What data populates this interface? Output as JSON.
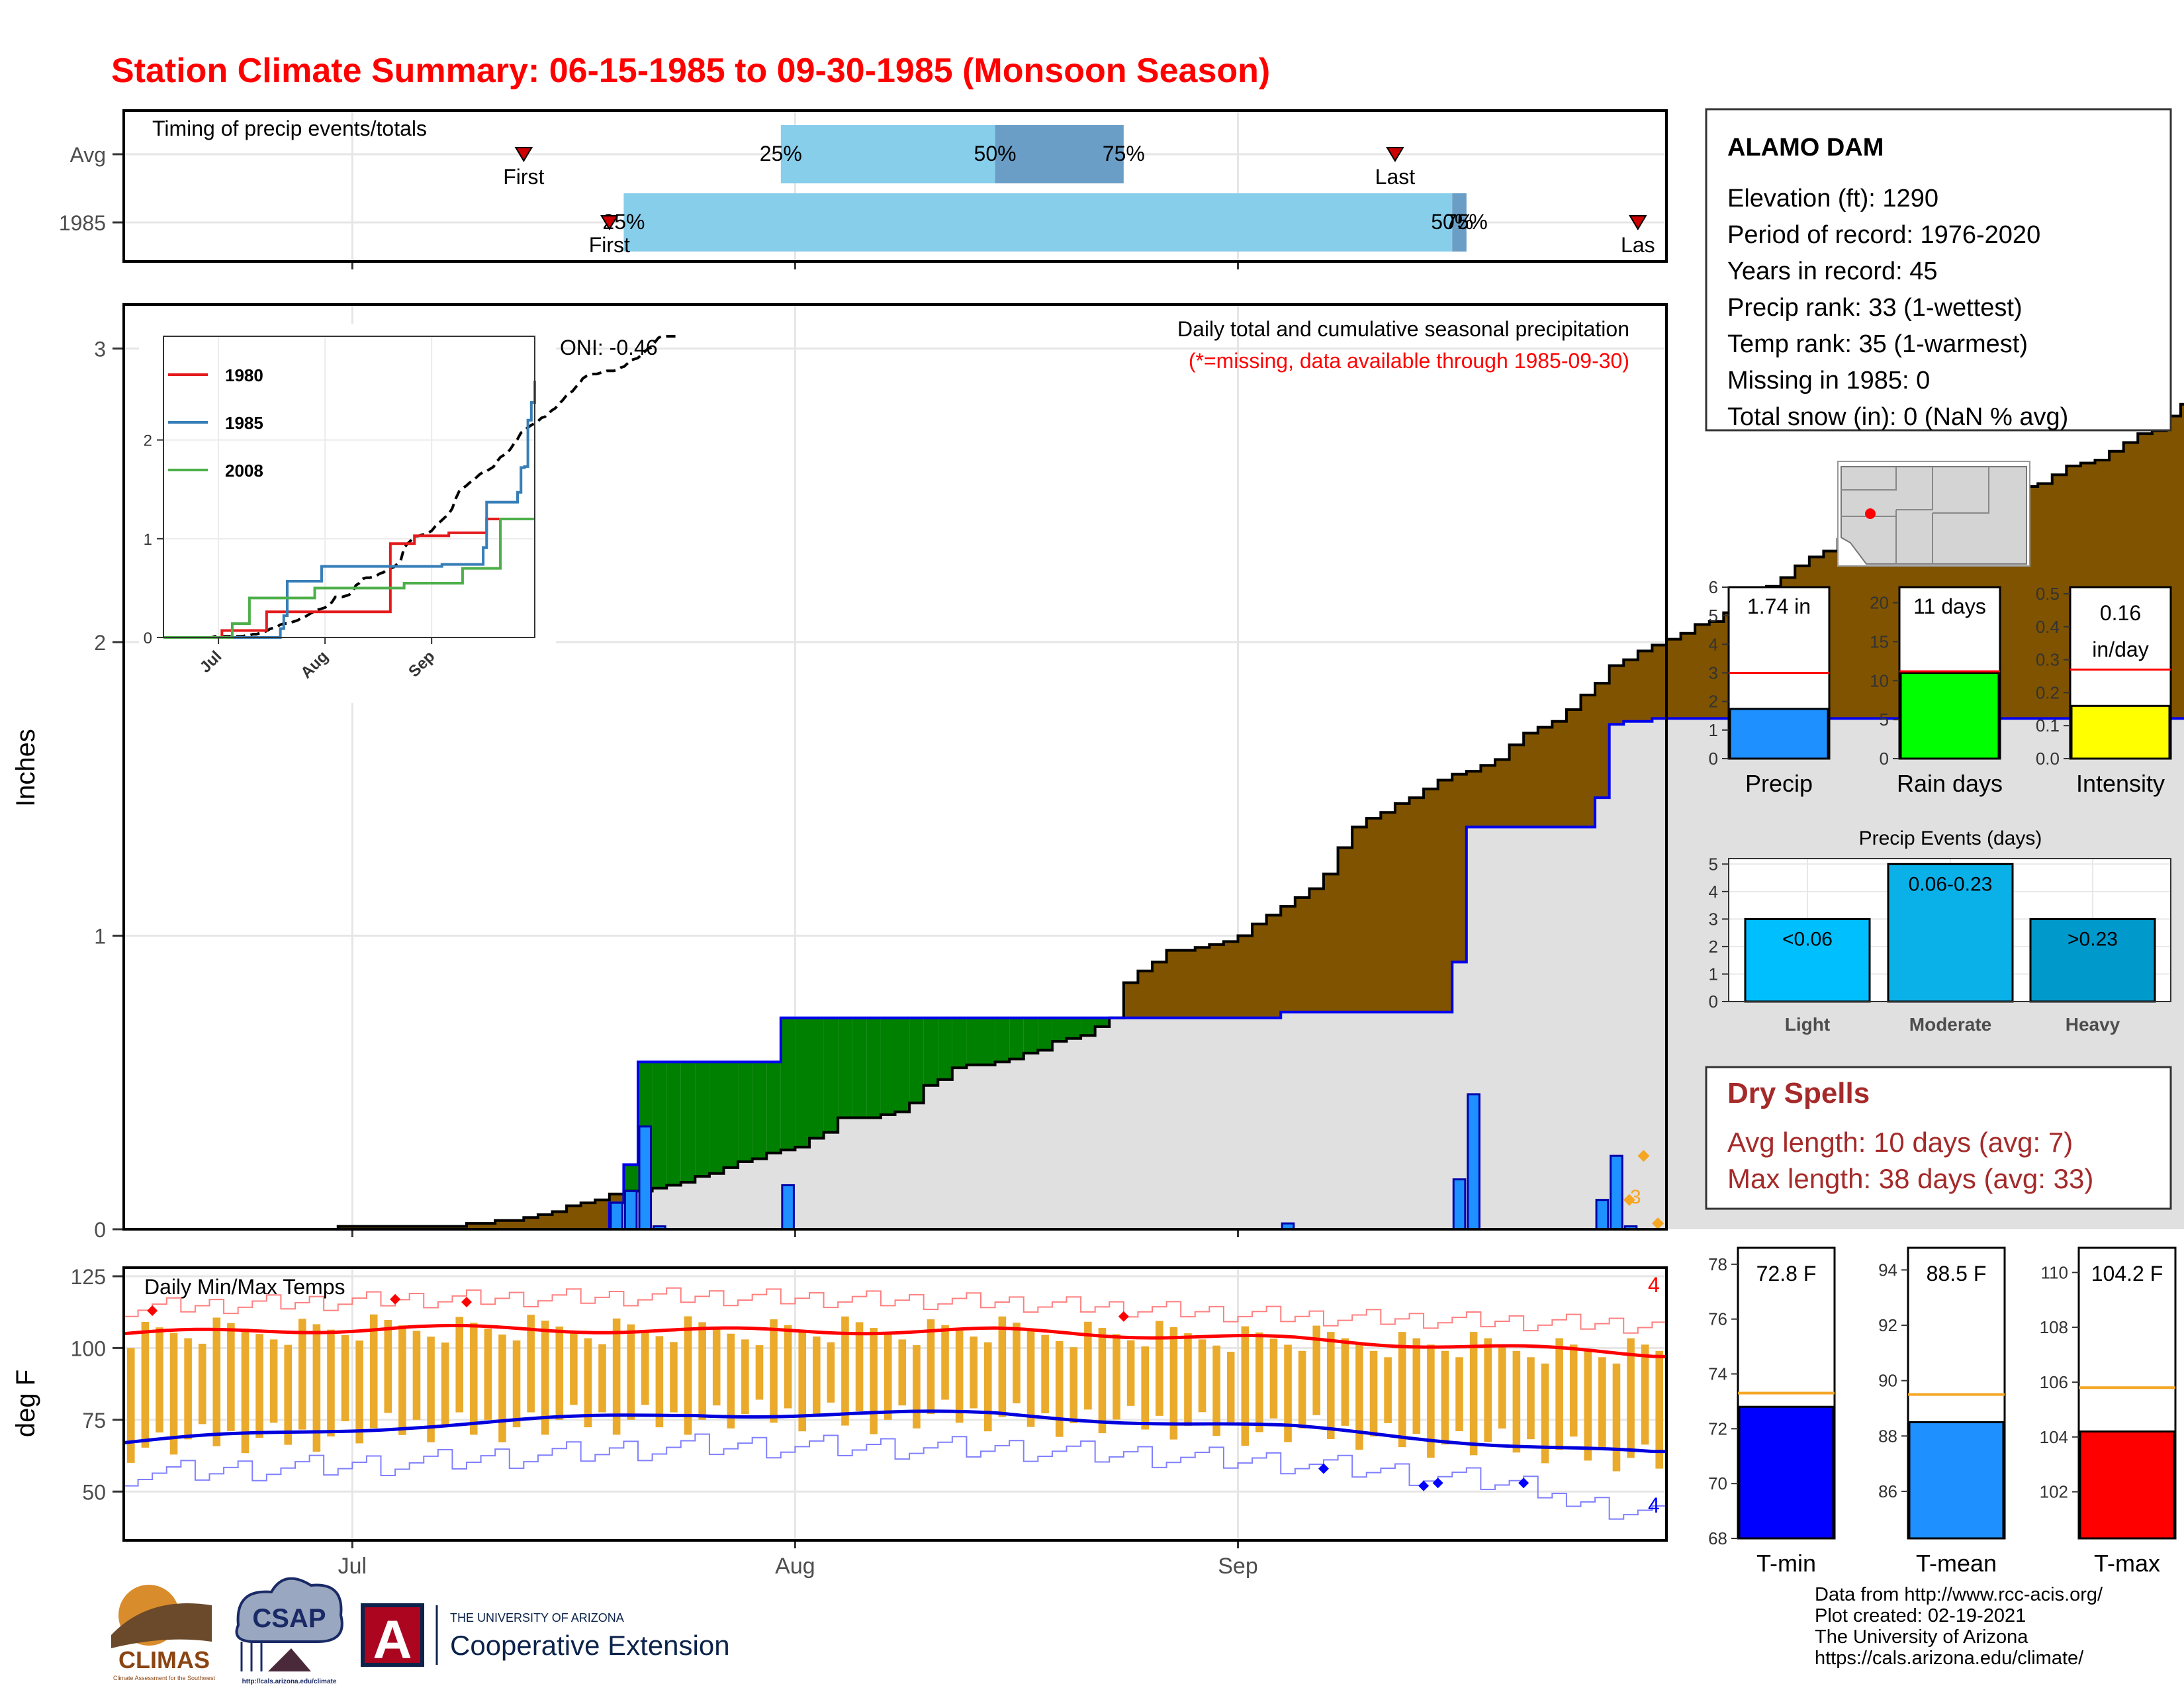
{
  "title": "Station Climate Summary: 06-15-1985 to 09-30-1985 (Monsoon Season)",
  "colors": {
    "title_red": "#ff0000",
    "precip_light": "#87ceeb",
    "precip_dark": "#6a9ec6",
    "cumulative_avg_fill": "#7f5300",
    "cumulative_above_fill": "#008000",
    "cumulative_year_fill": "#e0e0e0",
    "daily_bar": "#1e90ff",
    "temp_bar": "#eaaa2b",
    "tmax_line": "#ff0000",
    "tmin_line": "#0000dd",
    "dry_spell_red": "#a52a2a"
  },
  "timing_panel": {
    "label": "Timing of precip events/totals",
    "rows": [
      "Avg",
      "1985"
    ],
    "avg": {
      "first_label": "First",
      "last_label": "Last",
      "first": "1985-07-13",
      "p25": "1985-07-31",
      "p50": "1985-08-15",
      "p75": "1985-08-24",
      "last": "1985-09-12",
      "p25_label": "25%",
      "p50_label": "50%",
      "p75_label": "75%"
    },
    "y1985": {
      "first_label": "First",
      "last_label": "Las",
      "first": "1985-07-19",
      "p25": "1985-07-20",
      "p50": "1985-09-16",
      "p75": "1985-09-17",
      "last": "1985-09-29",
      "p25_label": "25%",
      "p50_label": "50%",
      "p75_label": "75%"
    }
  },
  "main_panel": {
    "ylabel": "Inches",
    "yticks": [
      "0",
      "1",
      "2",
      "3"
    ],
    "title": "Daily total and cumulative seasonal precipitation",
    "subtitle": "(*=missing, data available through 1985-09-30)",
    "oni": "ONI: -0.46",
    "marker_label": "3",
    "inset": {
      "legend": [
        "1980",
        "1985",
        "2008"
      ],
      "legend_colors": [
        "#e41a1c",
        "#377eb8",
        "#4daf4a"
      ],
      "yticks": [
        "0",
        "1",
        "2"
      ],
      "xticks": [
        "Jul",
        "Aug",
        "Sep"
      ]
    }
  },
  "temp_panel": {
    "label": "Daily Min/Max Temps",
    "ylabel": "deg F",
    "yticks": [
      "50",
      "75",
      "100",
      "125"
    ],
    "count_max": "4",
    "count_min": "4"
  },
  "x_axis": {
    "ticks": [
      "Jul",
      "Aug",
      "Sep"
    ]
  },
  "station": {
    "name": "ALAMO DAM",
    "lines": [
      "Elevation (ft): 1290",
      "Period of record: 1976-2020",
      "Years in record: 45",
      "Precip rank: 33 (1-wettest)",
      "Temp rank: 35 (1-warmest)",
      "Missing in 1985: 0",
      "Total snow (in): 0 (NaN % avg)"
    ]
  },
  "precip_bars": [
    {
      "label": "Precip",
      "value_text": "1.74 in",
      "value": 1.74,
      "avg": 3.0,
      "ticks": [
        "0",
        "1",
        "2",
        "3",
        "4",
        "5",
        "6"
      ],
      "max": 6,
      "color": "#1e90ff"
    },
    {
      "label": "Rain days",
      "value_text": "11 days",
      "value": 11,
      "avg": 11.2,
      "ticks": [
        "0",
        "5",
        "10",
        "15",
        "20"
      ],
      "max": 22,
      "color": "#00ff00"
    },
    {
      "label": "Intensity",
      "value_text": "0.16 in/day",
      "value_lines": [
        "0.16",
        "in/day"
      ],
      "value": 0.16,
      "avg": 0.27,
      "ticks": [
        "0.0",
        "0.1",
        "0.2",
        "0.3",
        "0.4",
        "0.5"
      ],
      "max": 0.52,
      "color": "#ffff00"
    }
  ],
  "precip_events": {
    "title": "Precip Events (days)",
    "categories": [
      "Light",
      "Moderate",
      "Heavy"
    ],
    "range_labels": [
      "<0.06",
      "0.06-0.23",
      ">0.23"
    ],
    "values": [
      3,
      5,
      3
    ],
    "yticks": [
      "0",
      "1",
      "2",
      "3",
      "4",
      "5"
    ],
    "colors": [
      "#00bfff",
      "#0ab0e8",
      "#0099cc"
    ]
  },
  "dry_spells": {
    "title": "Dry Spells",
    "avg_length": "Avg length: 10 days (avg: 7)",
    "max_length": "Max length: 38 days (avg: 33)"
  },
  "temp_bars": [
    {
      "label": "T-min",
      "value_text": "72.8 F",
      "value": 72.8,
      "avg": 73.3,
      "ticks": [
        "68",
        "70",
        "72",
        "74",
        "76",
        "78"
      ],
      "min": 68,
      "max": 78.6,
      "color": "#0000ff"
    },
    {
      "label": "T-mean",
      "value_text": "88.5 F",
      "value": 88.5,
      "avg": 89.5,
      "ticks": [
        "86",
        "88",
        "90",
        "92",
        "94"
      ],
      "min": 84.3,
      "max": 94.8,
      "color": "#1e90ff"
    },
    {
      "label": "T-max",
      "value_text": "104.2 F",
      "value": 104.2,
      "avg": 105.8,
      "ticks": [
        "102",
        "104",
        "106",
        "108",
        "110"
      ],
      "min": 100.3,
      "max": 110.9,
      "color": "#ff0000"
    }
  ],
  "footer": {
    "lines": [
      "Data from http://www.rcc-acis.org/",
      "Plot created: 02-19-2021",
      "The University of Arizona",
      "https://cals.arizona.edu/climate/"
    ],
    "logo_climas": "CLIMAS",
    "logo_climas_sub": "Climate Assessment for the Southwest",
    "logo_csap": "CSAP",
    "logo_csap_sub": "http://cals.arizona.edu/climate",
    "logo_ua": "A",
    "ua_small": "THE UNIVERSITY OF ARIZONA",
    "ua_big": "Cooperative Extension"
  },
  "chart_data": [
    {
      "type": "bar",
      "title": "Timing of precip events/totals",
      "categories": [
        "Avg",
        "1985"
      ],
      "series": [
        {
          "name": "Avg",
          "values": {
            "first": "1985-07-13",
            "p25": "1985-07-31",
            "p50": "1985-08-15",
            "p75": "1985-08-24",
            "last": "1985-09-12"
          }
        },
        {
          "name": "1985",
          "values": {
            "first": "1985-07-19",
            "p25": "1985-07-20",
            "p50": "1985-09-16",
            "p75": "1985-09-17",
            "last": "1985-09-29"
          }
        }
      ]
    },
    {
      "type": "area",
      "title": "Daily total and cumulative seasonal precipitation",
      "xlabel": "",
      "ylabel": "Inches",
      "xlim": [
        "1985-06-15",
        "1985-09-30"
      ],
      "ylim": [
        0,
        3.1
      ],
      "series": [
        {
          "name": "avg_cumulative",
          "x_start": "1985-06-15",
          "values": [
            0,
            0,
            0,
            0,
            0,
            0,
            0,
            0,
            0,
            0,
            0,
            0,
            0,
            0,
            0,
            0.01,
            0.01,
            0.01,
            0.01,
            0.01,
            0.01,
            0.01,
            0.01,
            0.01,
            0.02,
            0.02,
            0.03,
            0.03,
            0.04,
            0.05,
            0.06,
            0.08,
            0.09,
            0.1,
            0.12,
            0.13,
            0.13,
            0.14,
            0.15,
            0.16,
            0.18,
            0.19,
            0.21,
            0.23,
            0.24,
            0.26,
            0.27,
            0.28,
            0.31,
            0.33,
            0.38,
            0.38,
            0.38,
            0.39,
            0.4,
            0.43,
            0.49,
            0.51,
            0.55,
            0.56,
            0.56,
            0.57,
            0.58,
            0.6,
            0.61,
            0.64,
            0.65,
            0.66,
            0.69,
            0.72,
            0.84,
            0.88,
            0.91,
            0.95,
            0.95,
            0.96,
            0.97,
            0.98,
            1,
            1.04,
            1.07,
            1.1,
            1.13,
            1.16,
            1.21,
            1.3,
            1.37,
            1.4,
            1.42,
            1.45,
            1.47,
            1.5,
            1.53,
            1.55,
            1.56,
            1.58,
            1.6,
            1.65,
            1.69,
            1.71,
            1.73,
            1.77,
            1.82,
            1.86,
            1.92,
            1.94,
            1.97,
            1.99,
            2.01,
            2.03,
            2.06,
            2.07,
            2.1,
            2.13,
            2.15,
            2.19,
            2.22,
            2.26,
            2.29,
            2.31,
            2.35,
            2.38,
            2.43,
            2.45,
            2.46,
            2.47,
            2.47,
            2.48,
            2.49,
            2.5,
            2.5,
            2.5,
            2.51,
            2.53,
            2.54,
            2.57,
            2.6,
            2.61,
            2.62,
            2.65,
            2.68,
            2.71,
            2.72,
            2.77,
            2.81,
            2.85,
            2.86,
            2.86,
            2.87,
            2.87
          ]
        },
        {
          "name": "1985_cumulative",
          "points": [
            [
              "1985-06-15",
              0
            ],
            [
              "1985-07-19",
              0.09
            ],
            [
              "1985-07-20",
              0.22
            ],
            [
              "1985-07-21",
              0.57
            ],
            [
              "1985-07-31",
              0.72
            ],
            [
              "1985-09-04",
              0.74
            ],
            [
              "1985-09-16",
              0.91
            ],
            [
              "1985-09-17",
              1.37
            ],
            [
              "1985-09-26",
              1.47
            ],
            [
              "1985-09-27",
              1.72
            ],
            [
              "1985-09-28",
              1.73
            ],
            [
              "1985-09-30",
              1.74
            ]
          ]
        },
        {
          "name": "1985_daily",
          "points": [
            [
              "1985-07-19",
              0.09
            ],
            [
              "1985-07-20",
              0.13
            ],
            [
              "1985-07-21",
              0.35
            ],
            [
              "1985-07-22",
              0.01
            ],
            [
              "1985-07-31",
              0.15
            ],
            [
              "1985-09-04",
              0.02
            ],
            [
              "1985-09-16",
              0.17
            ],
            [
              "1985-09-17",
              0.46
            ],
            [
              "1985-09-26",
              0.1
            ],
            [
              "1985-09-27",
              0.25
            ],
            [
              "1985-09-28",
              0.01
            ]
          ]
        }
      ]
    },
    {
      "type": "line",
      "title": "Daily Min/Max Temps",
      "ylabel": "deg F",
      "ylim": [
        33,
        128
      ],
      "series": [
        {
          "name": "avg_tmax",
          "points": [
            [
              "1985-06-15",
              105
            ],
            [
              "1985-07-05",
              107
            ],
            [
              "1985-07-25",
              106
            ],
            [
              "1985-08-15",
              106
            ],
            [
              "1985-09-05",
              103
            ],
            [
              "1985-09-30",
              98
            ]
          ]
        },
        {
          "name": "avg_tmin",
          "points": [
            [
              "1985-06-15",
              67
            ],
            [
              "1985-07-05",
              73
            ],
            [
              "1985-07-25",
              77
            ],
            [
              "1985-08-15",
              77
            ],
            [
              "1985-09-05",
              72
            ],
            [
              "1985-09-30",
              63
            ]
          ]
        },
        {
          "name": "record_high",
          "points": [
            [
              "1985-06-15",
              114
            ],
            [
              "1985-07-05",
              117
            ],
            [
              "1985-07-25",
              118
            ],
            [
              "1985-08-15",
              116
            ],
            [
              "1985-09-05",
              111
            ],
            [
              "1985-09-30",
              108
            ]
          ]
        },
        {
          "name": "record_low",
          "points": [
            [
              "1985-06-15",
              56
            ],
            [
              "1985-07-05",
              60
            ],
            [
              "1985-07-25",
              66
            ],
            [
              "1985-08-15",
              65
            ],
            [
              "1985-09-05",
              60
            ],
            [
              "1985-09-30",
              48
            ]
          ]
        }
      ]
    },
    {
      "type": "bar",
      "title": "Precip Events (days)",
      "categories": [
        "Light",
        "Moderate",
        "Heavy"
      ],
      "values": [
        3,
        5,
        3
      ],
      "ylim": [
        0,
        5.2
      ]
    }
  ]
}
